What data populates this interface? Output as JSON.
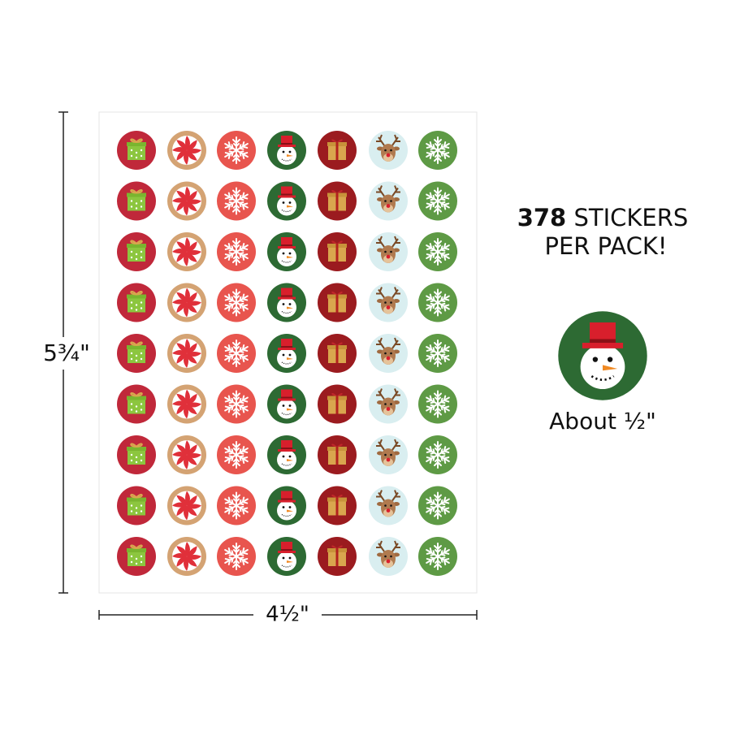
{
  "dimensions": {
    "height": "5¾\"",
    "width": "4½\""
  },
  "headline": {
    "count": "378",
    "line1": "STICKERS",
    "line2": "PER PACK!"
  },
  "sample": {
    "caption": "About ½\""
  }
}
